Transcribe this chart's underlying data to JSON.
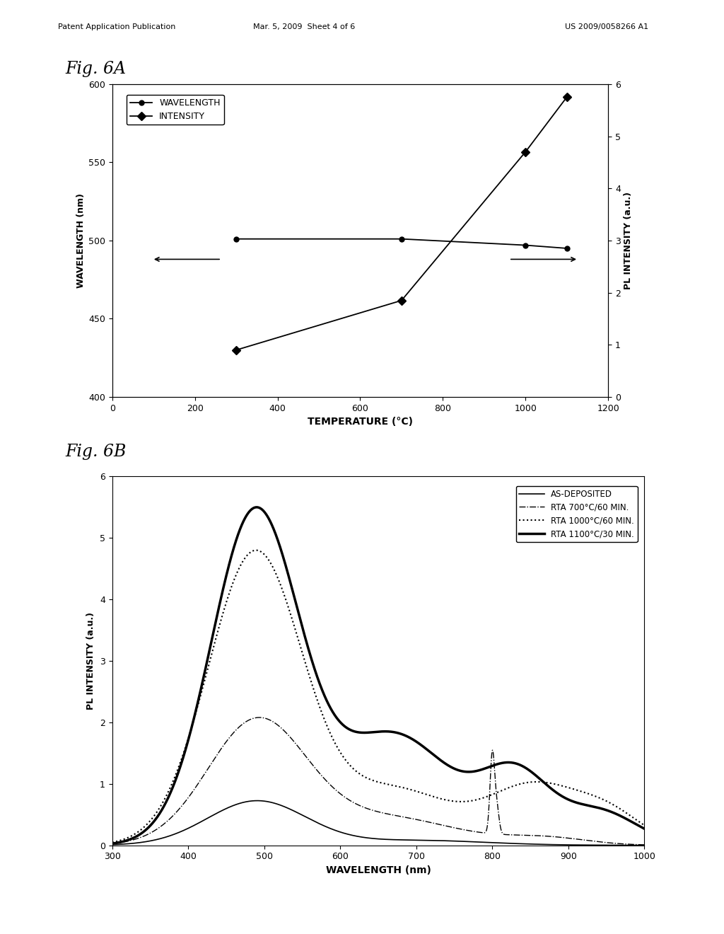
{
  "fig6a": {
    "wavelength_temp": [
      300,
      700,
      1000,
      1100
    ],
    "wavelength_vals": [
      501,
      501,
      497,
      495
    ],
    "intensity_temp": [
      300,
      700,
      1000,
      1100
    ],
    "intensity_vals": [
      0.9,
      1.85,
      4.7,
      5.75
    ],
    "xlim": [
      0,
      1200
    ],
    "ylim_left": [
      400,
      600
    ],
    "ylim_right": [
      0,
      6
    ],
    "xlabel": "TEMPERATURE (°C)",
    "ylabel_left": "WAVELENGTH (nm)",
    "ylabel_right": "PL INTENSITY (a.u.)",
    "xticks": [
      0,
      200,
      400,
      600,
      800,
      1000,
      1200
    ],
    "yticks_left": [
      400,
      450,
      500,
      550,
      600
    ],
    "yticks_right": [
      0,
      1,
      2,
      3,
      4,
      5,
      6
    ],
    "legend_wavelength": "WAVELENGTH",
    "legend_intensity": "INTENSITY"
  },
  "fig6b": {
    "xlim": [
      300,
      1000
    ],
    "ylim": [
      0.0,
      6.0
    ],
    "xlabel": "WAVELENGTH (nm)",
    "ylabel": "PL INTENSITY (a.u.)",
    "xticks": [
      300,
      400,
      500,
      600,
      700,
      800,
      900,
      1000
    ],
    "yticks": [
      0.0,
      1.0,
      2.0,
      3.0,
      4.0,
      5.0,
      6.0
    ],
    "legend": [
      {
        "label": "AS-DEPOSITED",
        "linestyle": "solid",
        "linewidth": 1.2
      },
      {
        "label": "RTA 700°C/60 MIN.",
        "linestyle": "dashdot",
        "linewidth": 1.0
      },
      {
        "label": "RTA 1000°C/60 MIN.",
        "linestyle": "dotted",
        "linewidth": 1.5
      },
      {
        "label": "RTA 1100°C/30 MIN.",
        "linestyle": "solid",
        "linewidth": 2.5
      }
    ]
  },
  "header_left": "Patent Application Publication",
  "header_mid": "Mar. 5, 2009  Sheet 4 of 6",
  "header_right": "US 2009/0058266 A1",
  "bg_color": "#ffffff",
  "text_color": "#000000"
}
